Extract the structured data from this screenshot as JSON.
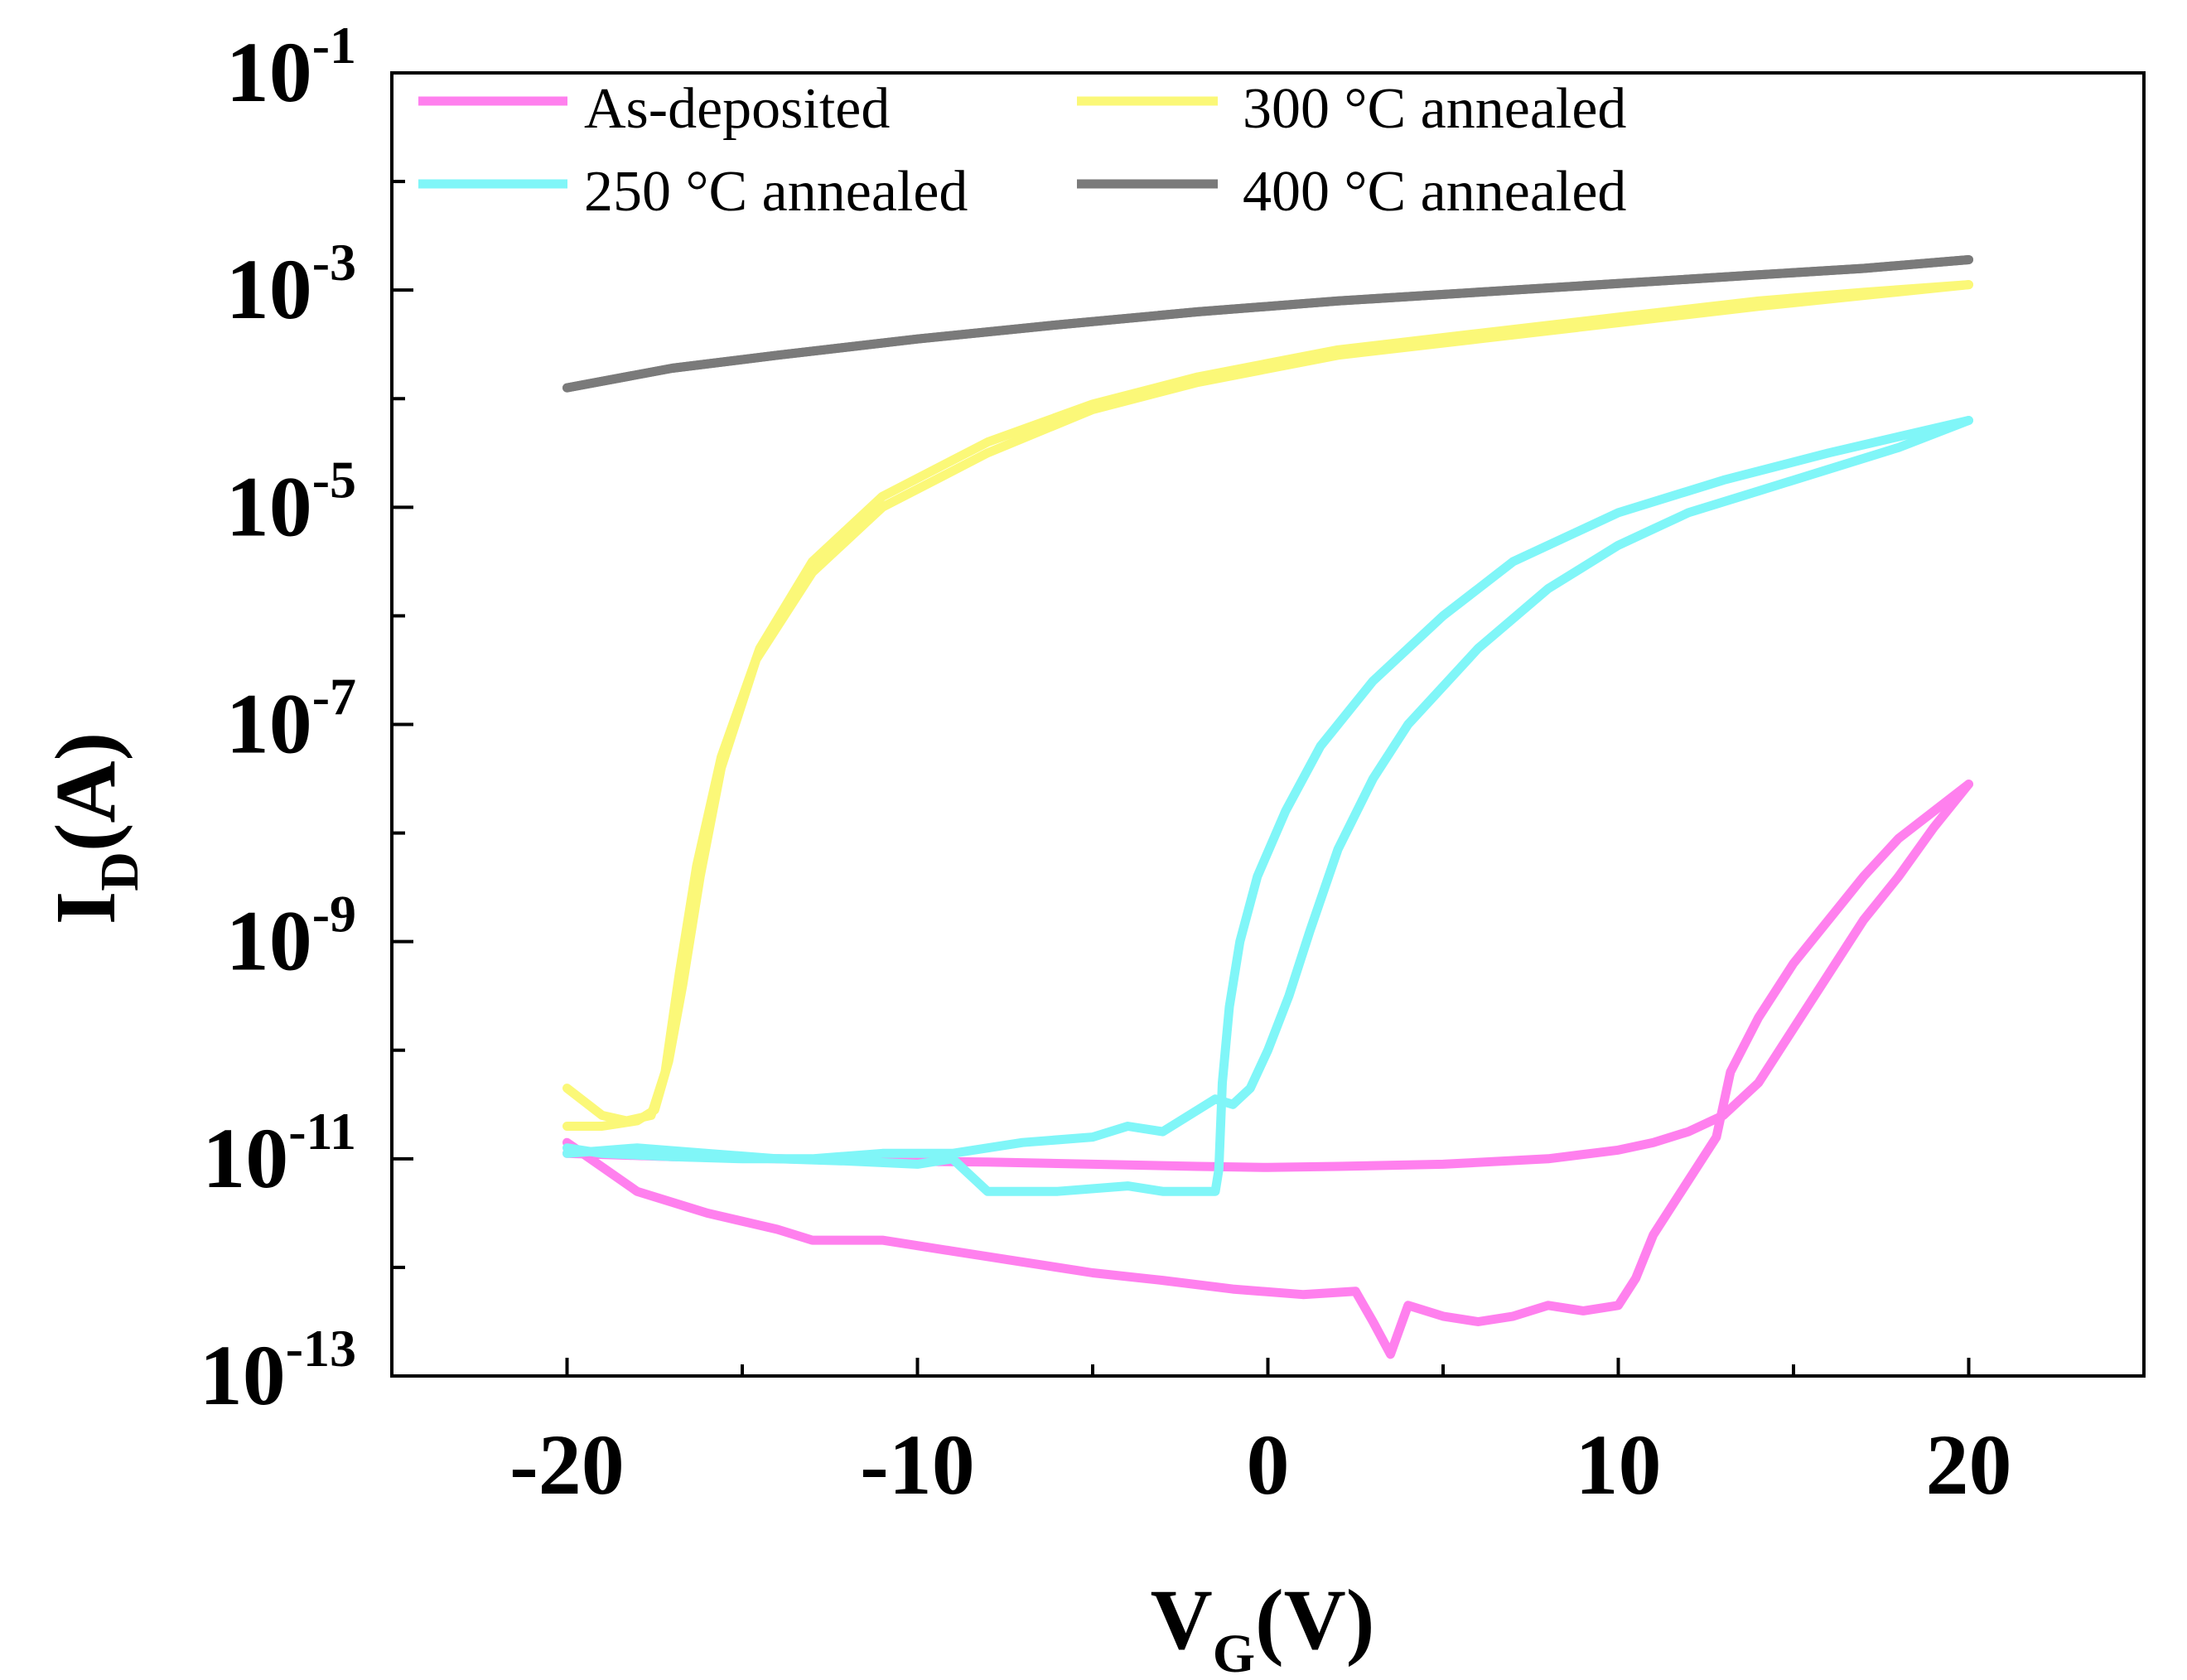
{
  "chart_data": {
    "type": "line",
    "title": "",
    "xlabel": {
      "main": "V",
      "sub": "G",
      "unit": "(V)"
    },
    "ylabel": {
      "main": "I",
      "sub": "D",
      "unit": "(A)"
    },
    "xlim": [
      -25,
      25
    ],
    "ylim_exp": [
      -13,
      -1
    ],
    "yscale": "log",
    "x_ticks": [
      -20,
      -10,
      0,
      10,
      20
    ],
    "x_tick_labels": [
      "-20",
      "-10",
      "0",
      "10",
      "20"
    ],
    "y_ticks_exp": [
      -1,
      -3,
      -5,
      -7,
      -9,
      -11,
      -13
    ],
    "y_tick_labels": [
      {
        "base": "10",
        "exp": "-1"
      },
      {
        "base": "10",
        "exp": "-3"
      },
      {
        "base": "10",
        "exp": "-5"
      },
      {
        "base": "10",
        "exp": "-7"
      },
      {
        "base": "10",
        "exp": "-9"
      },
      {
        "base": "10",
        "exp": "-11"
      },
      {
        "base": "10",
        "exp": "-13"
      }
    ],
    "legend_position": "top",
    "series": [
      {
        "name": "As-deposited",
        "color": "#ff80ee",
        "forward": [
          [
            -20,
            -10.85
          ],
          [
            -18,
            -11.3
          ],
          [
            -16,
            -11.5
          ],
          [
            -14,
            -11.65
          ],
          [
            -13,
            -11.75
          ],
          [
            -11,
            -11.75
          ],
          [
            -9,
            -11.85
          ],
          [
            -7,
            -11.95
          ],
          [
            -5,
            -12.05
          ],
          [
            -3,
            -12.12
          ],
          [
            -1,
            -12.2
          ],
          [
            1,
            -12.25
          ],
          [
            2.5,
            -12.22
          ],
          [
            3,
            -12.5
          ],
          [
            3.5,
            -12.8
          ],
          [
            4,
            -12.35
          ],
          [
            5,
            -12.45
          ],
          [
            6,
            -12.5
          ],
          [
            7,
            -12.45
          ],
          [
            8,
            -12.35
          ],
          [
            9,
            -12.4
          ],
          [
            10,
            -12.35
          ],
          [
            10.5,
            -12.1
          ],
          [
            11,
            -11.7
          ],
          [
            12,
            -11.2
          ],
          [
            12.8,
            -10.8
          ],
          [
            13.2,
            -10.2
          ],
          [
            14,
            -9.7
          ],
          [
            15,
            -9.2
          ],
          [
            16,
            -8.8
          ],
          [
            17,
            -8.4
          ],
          [
            18,
            -8.05
          ],
          [
            19,
            -7.8
          ],
          [
            20,
            -7.55
          ]
        ],
        "backward": [
          [
            20,
            -7.55
          ],
          [
            19,
            -7.95
          ],
          [
            18,
            -8.4
          ],
          [
            17,
            -8.8
          ],
          [
            16,
            -9.3
          ],
          [
            15,
            -9.8
          ],
          [
            14,
            -10.3
          ],
          [
            13,
            -10.6
          ],
          [
            12,
            -10.75
          ],
          [
            11,
            -10.85
          ],
          [
            10,
            -10.92
          ],
          [
            8,
            -11.0
          ],
          [
            5,
            -11.05
          ],
          [
            2,
            -11.07
          ],
          [
            0,
            -11.08
          ],
          [
            -2,
            -11.07
          ],
          [
            -5,
            -11.05
          ],
          [
            -8,
            -11.03
          ],
          [
            -11,
            -11.02
          ],
          [
            -14,
            -11.0
          ],
          [
            -17,
            -10.98
          ],
          [
            -20,
            -10.95
          ]
        ]
      },
      {
        "name": "250 °C annealed",
        "color": "#80f6f8",
        "forward": [
          [
            -20,
            -10.95
          ],
          [
            -18,
            -10.9
          ],
          [
            -16,
            -10.95
          ],
          [
            -14,
            -11.0
          ],
          [
            -12,
            -11.02
          ],
          [
            -10,
            -11.05
          ],
          [
            -9,
            -11.0
          ],
          [
            -8,
            -11.3
          ],
          [
            -6,
            -11.3
          ],
          [
            -4,
            -11.25
          ],
          [
            -3,
            -11.3
          ],
          [
            -2,
            -11.3
          ],
          [
            -1.5,
            -11.3
          ],
          [
            -1.4,
            -11.1
          ],
          [
            -1.3,
            -10.3
          ],
          [
            -1.1,
            -9.6
          ],
          [
            -0.8,
            -9.0
          ],
          [
            -0.3,
            -8.4
          ],
          [
            0.5,
            -7.8
          ],
          [
            1.5,
            -7.2
          ],
          [
            3,
            -6.6
          ],
          [
            5,
            -6.0
          ],
          [
            7,
            -5.5
          ],
          [
            10,
            -5.05
          ],
          [
            13,
            -4.75
          ],
          [
            16,
            -4.5
          ],
          [
            18,
            -4.35
          ],
          [
            20,
            -4.2
          ]
        ],
        "backward": [
          [
            20,
            -4.2
          ],
          [
            18,
            -4.45
          ],
          [
            16,
            -4.65
          ],
          [
            14,
            -4.85
          ],
          [
            12,
            -5.05
          ],
          [
            10,
            -5.35
          ],
          [
            8,
            -5.75
          ],
          [
            6,
            -6.3
          ],
          [
            4,
            -7.0
          ],
          [
            3,
            -7.5
          ],
          [
            2,
            -8.15
          ],
          [
            1.2,
            -8.9
          ],
          [
            0.6,
            -9.5
          ],
          [
            0,
            -10.0
          ],
          [
            -0.5,
            -10.35
          ],
          [
            -1,
            -10.5
          ],
          [
            -1.5,
            -10.45
          ],
          [
            -2,
            -10.55
          ],
          [
            -3,
            -10.75
          ],
          [
            -4,
            -10.7
          ],
          [
            -5,
            -10.8
          ],
          [
            -7,
            -10.85
          ],
          [
            -9,
            -10.95
          ],
          [
            -11,
            -10.95
          ],
          [
            -13,
            -11.0
          ],
          [
            -15,
            -11.0
          ],
          [
            -17,
            -10.98
          ],
          [
            -19,
            -10.95
          ],
          [
            -20,
            -10.9
          ]
        ]
      },
      {
        "name": "300 °C annealed",
        "color": "#fbf878",
        "forward": [
          [
            -20,
            -10.35
          ],
          [
            -19,
            -10.6
          ],
          [
            -18.3,
            -10.65
          ],
          [
            -17.6,
            -10.6
          ],
          [
            -17.2,
            -10.2
          ],
          [
            -16.8,
            -9.3
          ],
          [
            -16.3,
            -8.3
          ],
          [
            -15.6,
            -7.3
          ],
          [
            -14.5,
            -6.3
          ],
          [
            -13,
            -5.5
          ],
          [
            -11,
            -4.9
          ],
          [
            -8,
            -4.4
          ],
          [
            -5,
            -4.05
          ],
          [
            -2,
            -3.8
          ],
          [
            2,
            -3.55
          ],
          [
            6,
            -3.4
          ],
          [
            10,
            -3.25
          ],
          [
            14,
            -3.1
          ],
          [
            17,
            -3.02
          ],
          [
            20,
            -2.95
          ]
        ],
        "backward": [
          [
            20,
            -2.95
          ],
          [
            17,
            -3.05
          ],
          [
            14,
            -3.15
          ],
          [
            10,
            -3.3
          ],
          [
            6,
            -3.45
          ],
          [
            2,
            -3.6
          ],
          [
            -2,
            -3.85
          ],
          [
            -5,
            -4.1
          ],
          [
            -8,
            -4.5
          ],
          [
            -11,
            -5.0
          ],
          [
            -13,
            -5.6
          ],
          [
            -14.6,
            -6.4
          ],
          [
            -15.6,
            -7.4
          ],
          [
            -16.2,
            -8.4
          ],
          [
            -16.7,
            -9.4
          ],
          [
            -17.1,
            -10.1
          ],
          [
            -17.5,
            -10.55
          ],
          [
            -18,
            -10.65
          ],
          [
            -19,
            -10.7
          ],
          [
            -20,
            -10.7
          ]
        ]
      },
      {
        "name": "400 °C annealed",
        "color": "#7a7a7a",
        "forward": [
          [
            -20,
            -3.9
          ],
          [
            -17,
            -3.72
          ],
          [
            -14,
            -3.6
          ],
          [
            -10,
            -3.45
          ],
          [
            -6,
            -3.32
          ],
          [
            -2,
            -3.2
          ],
          [
            2,
            -3.1
          ],
          [
            6,
            -3.02
          ],
          [
            10,
            -2.94
          ],
          [
            14,
            -2.86
          ],
          [
            17,
            -2.8
          ],
          [
            20,
            -2.72
          ]
        ],
        "backward": [
          [
            20,
            -2.72
          ],
          [
            17,
            -2.8
          ],
          [
            14,
            -2.86
          ],
          [
            10,
            -2.94
          ],
          [
            6,
            -3.02
          ],
          [
            2,
            -3.1
          ],
          [
            -2,
            -3.2
          ],
          [
            -6,
            -3.32
          ],
          [
            -10,
            -3.45
          ],
          [
            -14,
            -3.6
          ],
          [
            -17,
            -3.72
          ],
          [
            -20,
            -3.9
          ]
        ]
      }
    ]
  }
}
